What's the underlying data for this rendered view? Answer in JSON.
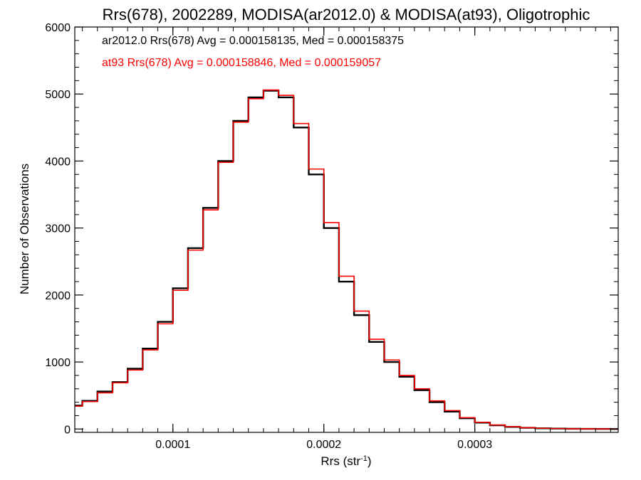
{
  "chart_data": {
    "type": "line",
    "title": "Rrs(678), 2002289, MODISA(ar2012.0) & MODISA(at93), Oligotrophic",
    "xlabel": "Rrs (str",
    "xlabel_sup": "-1",
    "xlabel_close": ")",
    "ylabel": "Number of Observations",
    "xlim": [
      3.5e-05,
      0.000395
    ],
    "ylim": [
      -50,
      6000
    ],
    "x_ticks": [
      0.0001,
      0.0002,
      0.0003
    ],
    "x_tick_labels": [
      "0.0001",
      "0.0002",
      "0.0003"
    ],
    "y_ticks": [
      0,
      1000,
      2000,
      3000,
      4000,
      5000,
      6000
    ],
    "y_tick_labels": [
      "0",
      "1000",
      "2000",
      "3000",
      "4000",
      "5000",
      "6000"
    ],
    "grid": false,
    "step": true,
    "x": [
      3.5e-05,
      4e-05,
      5e-05,
      6e-05,
      7e-05,
      8e-05,
      9e-05,
      0.0001,
      0.00011,
      0.00012,
      0.00013,
      0.00014,
      0.00015,
      0.00016,
      0.00017,
      0.00018,
      0.00019,
      0.0002,
      0.00021,
      0.00022,
      0.00023,
      0.00024,
      0.00025,
      0.00026,
      0.00027,
      0.00028,
      0.00029,
      0.0003,
      0.00031,
      0.00032,
      0.00033,
      0.00034,
      0.00035,
      0.00036,
      0.00037,
      0.00038,
      0.00039,
      0.000395
    ],
    "series": [
      {
        "name": "ar2012.0",
        "color": "#000000",
        "annotation": "ar2012.0 Rrs(678) Avg = 0.000158135, Med = 0.000158375",
        "values": [
          350,
          420,
          560,
          700,
          900,
          1200,
          1600,
          2100,
          2700,
          3300,
          4000,
          4600,
          4950,
          5050,
          4950,
          4500,
          3800,
          3000,
          2200,
          1700,
          1300,
          1000,
          780,
          580,
          400,
          260,
          160,
          95,
          55,
          32,
          18,
          10,
          6,
          4,
          2,
          1,
          0,
          0
        ]
      },
      {
        "name": "at93",
        "color": "#ff0000",
        "annotation": "at93 Rrs(678) Avg = 0.000158846, Med = 0.000159057",
        "values": [
          340,
          410,
          540,
          690,
          880,
          1180,
          1570,
          2070,
          2670,
          3270,
          3980,
          4580,
          4930,
          5060,
          4980,
          4560,
          3880,
          3080,
          2280,
          1760,
          1340,
          1030,
          800,
          600,
          420,
          275,
          170,
          100,
          60,
          35,
          20,
          11,
          7,
          4,
          2,
          1,
          0,
          0
        ]
      }
    ]
  }
}
